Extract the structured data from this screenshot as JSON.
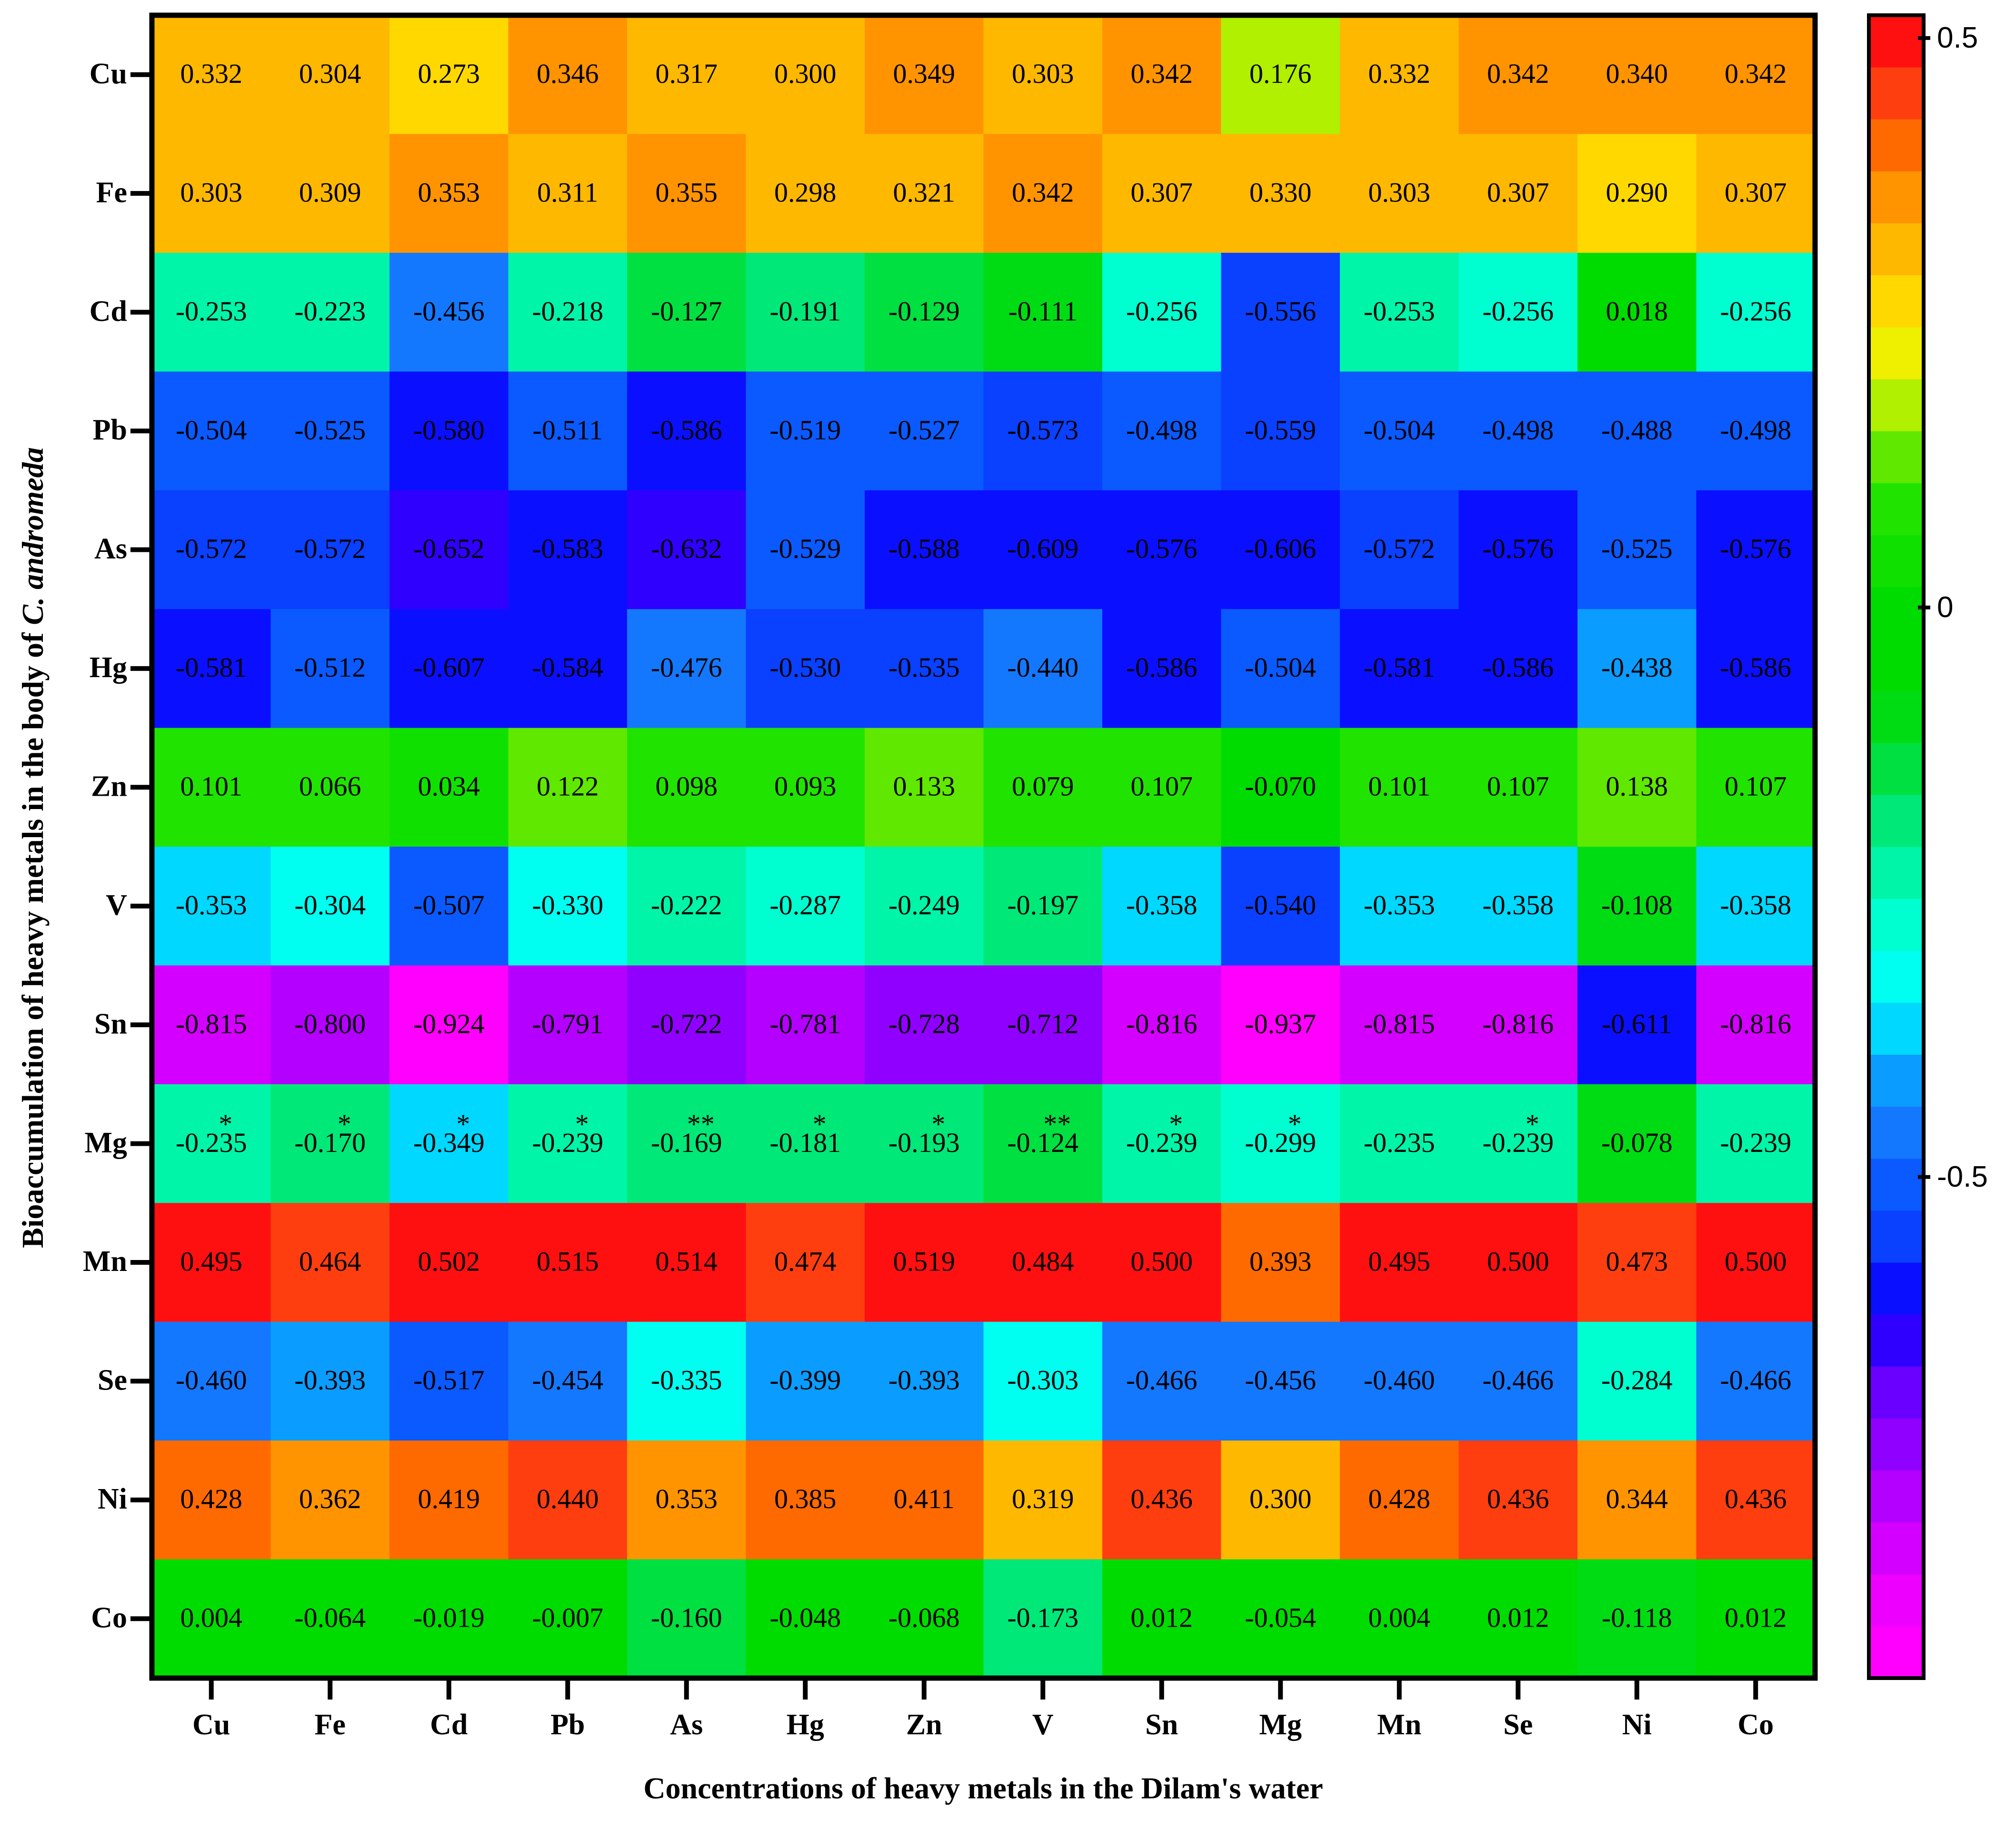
{
  "chart_data": {
    "type": "heatmap",
    "x_label": "Concentrations of heavy metals in the Dilam's water",
    "y_label": "Bioaccumulation of heavy metals in the body of",
    "y_label_italic": "C. andromeda",
    "x_categories": [
      "Cu",
      "Fe",
      "Cd",
      "Pb",
      "As",
      "Hg",
      "Zn",
      "V",
      "Sn",
      "Mg",
      "Mn",
      "Se",
      "Ni",
      "Co"
    ],
    "y_categories": [
      "Cu",
      "Fe",
      "Cd",
      "Pb",
      "As",
      "Hg",
      "Zn",
      "V",
      "Sn",
      "Mg",
      "Mn",
      "Se",
      "Ni",
      "Co"
    ],
    "values": [
      [
        0.332,
        0.304,
        0.273,
        0.346,
        0.317,
        0.3,
        0.349,
        0.303,
        0.342,
        0.176,
        0.332,
        0.342,
        0.34,
        0.342
      ],
      [
        0.303,
        0.309,
        0.353,
        0.311,
        0.355,
        0.298,
        0.321,
        0.342,
        0.307,
        0.33,
        0.303,
        0.307,
        0.29,
        0.307
      ],
      [
        -0.253,
        -0.223,
        -0.456,
        -0.218,
        -0.127,
        -0.191,
        -0.129,
        -0.111,
        -0.256,
        -0.556,
        -0.253,
        -0.256,
        0.018,
        -0.256
      ],
      [
        -0.504,
        -0.525,
        -0.58,
        -0.511,
        -0.586,
        -0.519,
        -0.527,
        -0.573,
        -0.498,
        -0.559,
        -0.504,
        -0.498,
        -0.488,
        -0.498
      ],
      [
        -0.572,
        -0.572,
        -0.652,
        -0.583,
        -0.632,
        -0.529,
        -0.588,
        -0.609,
        -0.576,
        -0.606,
        -0.572,
        -0.576,
        -0.525,
        -0.576
      ],
      [
        -0.581,
        -0.512,
        -0.607,
        -0.584,
        -0.476,
        -0.53,
        -0.535,
        -0.44,
        -0.586,
        -0.504,
        -0.581,
        -0.586,
        -0.438,
        -0.586
      ],
      [
        0.101,
        0.066,
        0.034,
        0.122,
        0.098,
        0.093,
        0.133,
        0.079,
        0.107,
        -0.07,
        0.101,
        0.107,
        0.138,
        0.107
      ],
      [
        -0.353,
        -0.304,
        -0.507,
        -0.33,
        -0.222,
        -0.287,
        -0.249,
        -0.197,
        -0.358,
        -0.54,
        -0.353,
        -0.358,
        -0.108,
        -0.358
      ],
      [
        -0.815,
        -0.8,
        -0.924,
        -0.791,
        -0.722,
        -0.781,
        -0.728,
        -0.712,
        -0.816,
        -0.937,
        -0.815,
        -0.816,
        -0.611,
        -0.816
      ],
      [
        -0.235,
        -0.17,
        -0.349,
        -0.239,
        -0.169,
        -0.181,
        -0.193,
        -0.124,
        -0.239,
        -0.299,
        -0.235,
        -0.239,
        -0.078,
        -0.239
      ],
      [
        0.495,
        0.464,
        0.502,
        0.515,
        0.514,
        0.474,
        0.519,
        0.484,
        0.5,
        0.393,
        0.495,
        0.5,
        0.473,
        0.5
      ],
      [
        -0.46,
        -0.393,
        -0.517,
        -0.454,
        -0.335,
        -0.399,
        -0.393,
        -0.303,
        -0.466,
        -0.456,
        -0.46,
        -0.466,
        -0.284,
        -0.466
      ],
      [
        0.428,
        0.362,
        0.419,
        0.44,
        0.353,
        0.385,
        0.411,
        0.319,
        0.436,
        0.3,
        0.428,
        0.436,
        0.344,
        0.436
      ],
      [
        0.004,
        -0.064,
        -0.019,
        -0.007,
        -0.16,
        -0.048,
        -0.068,
        -0.173,
        0.012,
        -0.054,
        0.004,
        0.012,
        -0.118,
        0.012
      ]
    ],
    "value_labels": [
      [
        "0.332",
        "0.304",
        "0.273",
        "0.346",
        "0.317",
        "0.300",
        "0.349",
        "0.303",
        "0.342",
        "0.176",
        "0.332",
        "0.342",
        "0.340",
        "0.342"
      ],
      [
        "0.303",
        "0.309",
        "0.353",
        "0.311",
        "0.355",
        "0.298",
        "0.321",
        "0.342",
        "0.307",
        "0.330",
        "0.303",
        "0.307",
        "0.290",
        "0.307"
      ],
      [
        "-0.253",
        "-0.223",
        "-0.456",
        "-0.218",
        "-0.127",
        "-0.191",
        "-0.129",
        "-0.111",
        "-0.256",
        "-0.556",
        "-0.253",
        "-0.256",
        "0.018",
        "-0.256"
      ],
      [
        "-0.504",
        "-0.525",
        "-0.580",
        "-0.511",
        "-0.586",
        "-0.519",
        "-0.527",
        "-0.573",
        "-0.498",
        "-0.559",
        "-0.504",
        "-0.498",
        "-0.488",
        "-0.498"
      ],
      [
        "-0.572",
        "-0.572",
        "-0.652",
        "-0.583",
        "-0.632",
        "-0.529",
        "-0.588",
        "-0.609",
        "-0.576",
        "-0.606",
        "-0.572",
        "-0.576",
        "-0.525",
        "-0.576"
      ],
      [
        "-0.581",
        "-0.512",
        "-0.607",
        "-0.584",
        "-0.476",
        "-0.530",
        "-0.535",
        "-0.440",
        "-0.586",
        "-0.504",
        "-0.581",
        "-0.586",
        "-0.438",
        "-0.586"
      ],
      [
        "0.101",
        "0.066",
        "0.034",
        "0.122",
        "0.098",
        "0.093",
        "0.133",
        "0.079",
        "0.107",
        "-0.070",
        "0.101",
        "0.107",
        "0.138",
        "0.107"
      ],
      [
        "-0.353",
        "-0.304",
        "-0.507",
        "-0.330",
        "-0.222",
        "-0.287",
        "-0.249",
        "-0.197",
        "-0.358",
        "-0.540",
        "-0.353",
        "-0.358",
        "-0.108",
        "-0.358"
      ],
      [
        "-0.815",
        "-0.800",
        "-0.924",
        "-0.791",
        "-0.722",
        "-0.781",
        "-0.728",
        "-0.712",
        "-0.816",
        "-0.937",
        "-0.815",
        "-0.816",
        "-0.611",
        "-0.816"
      ],
      [
        "-0.235",
        "-0.170",
        "-0.349",
        "-0.239",
        "-0.169",
        "-0.181",
        "-0.193",
        "-0.124",
        "-0.239",
        "-0.299",
        "-0.235",
        "-0.239",
        "-0.078",
        "-0.239"
      ],
      [
        "0.495",
        "0.464",
        "0.502",
        "0.515",
        "0.514",
        "0.474",
        "0.519",
        "0.484",
        "0.500",
        "0.393",
        "0.495",
        "0.500",
        "0.473",
        "0.500"
      ],
      [
        "-0.460",
        "-0.393",
        "-0.517",
        "-0.454",
        "-0.335",
        "-0.399",
        "-0.393",
        "-0.303",
        "-0.466",
        "-0.456",
        "-0.460",
        "-0.466",
        "-0.284",
        "-0.466"
      ],
      [
        "0.428",
        "0.362",
        "0.419",
        "0.440",
        "0.353",
        "0.385",
        "0.411",
        "0.319",
        "0.436",
        "0.300",
        "0.428",
        "0.436",
        "0.344",
        "0.436"
      ],
      [
        "0.004",
        "-0.064",
        "-0.019",
        "-0.007",
        "-0.160",
        "-0.048",
        "-0.068",
        "-0.173",
        "0.012",
        "-0.054",
        "0.004",
        "0.012",
        "-0.118",
        "0.012"
      ]
    ],
    "annotations": [
      {
        "row": "Mg",
        "column": "Cu",
        "text": "*"
      },
      {
        "row": "Mg",
        "column": "Fe",
        "text": "*"
      },
      {
        "row": "Mg",
        "column": "Cd",
        "text": "*"
      },
      {
        "row": "Mg",
        "column": "Pb",
        "text": "*"
      },
      {
        "row": "Mg",
        "column": "As",
        "text": "**"
      },
      {
        "row": "Mg",
        "column": "Hg",
        "text": "*"
      },
      {
        "row": "Mg",
        "column": "Zn",
        "text": "*"
      },
      {
        "row": "Mg",
        "column": "V",
        "text": "**"
      },
      {
        "row": "Mg",
        "column": "Sn",
        "text": "*"
      },
      {
        "row": "Mg",
        "column": "Mg",
        "text": "*"
      },
      {
        "row": "Mg",
        "column": "Se",
        "text": "*"
      }
    ],
    "colorbar": {
      "zlim": [
        -0.94,
        0.52
      ],
      "ticks": [
        0.5,
        0,
        -0.5
      ],
      "colors": [
        "#ff00ff",
        "#ee00ff",
        "#d400ff",
        "#b400ff",
        "#9000ff",
        "#6a00ff",
        "#3000ff",
        "#0a10ff",
        "#0a40ff",
        "#0a5aff",
        "#1478ff",
        "#0a9cff",
        "#00d8ff",
        "#00fff0",
        "#00ffd0",
        "#00f5a8",
        "#00e878",
        "#00e040",
        "#00dc14",
        "#00dc00",
        "#00dc00",
        "#10e000",
        "#20e400",
        "#60e800",
        "#b0f000",
        "#eef000",
        "#ffd800",
        "#ffb800",
        "#ff9400",
        "#ff6a00",
        "#ff3e10",
        "#ff1010"
      ]
    }
  }
}
